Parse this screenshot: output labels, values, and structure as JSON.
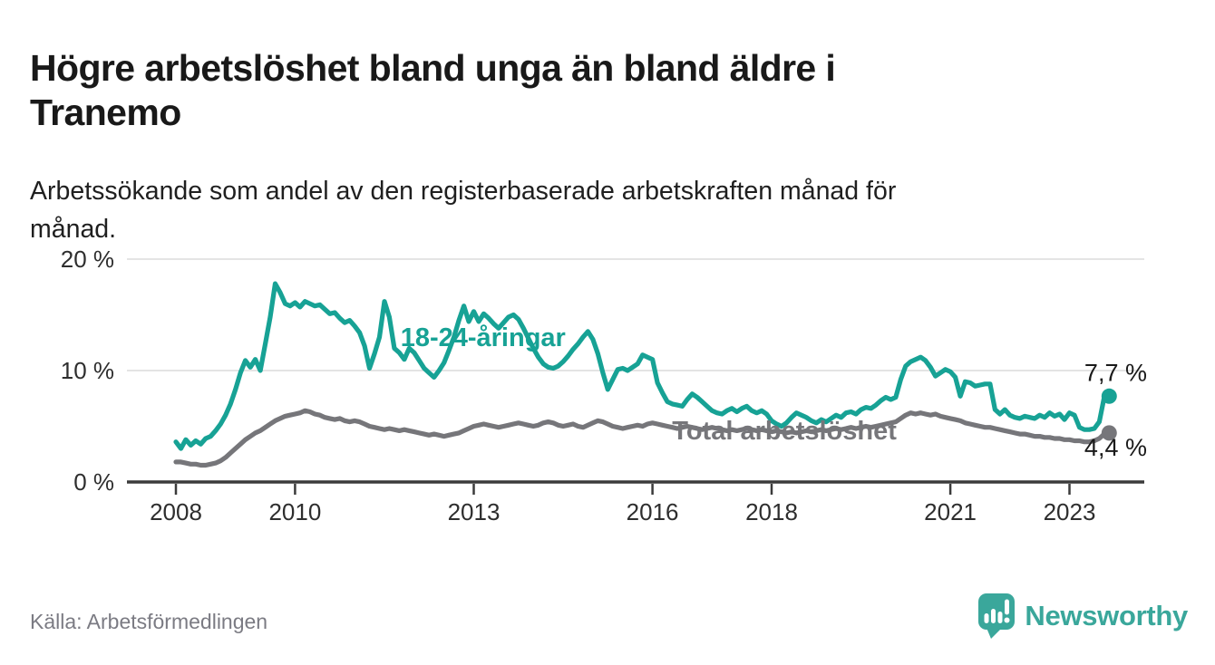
{
  "page": {
    "title_lines": [
      "Högre arbetslöshet bland unga än bland äldre i",
      "Tranemo"
    ],
    "subtitle_lines": [
      "Arbetssökande som andel av den registerbaserade arbetskraften månad för",
      "månad."
    ],
    "source": "Källa: Arbetsförmedlingen",
    "brand": {
      "name": "Newsworthy",
      "color": "#3aa79b",
      "icon": "speech-bubble-bar-chart-icon"
    }
  },
  "chart_data": {
    "type": "line",
    "title": "Högre arbetslöshet bland unga än bland äldre i Tranemo",
    "subtitle": "Arbetssökande som andel av den registerbaserade arbetskraften månad för månad.",
    "x_start_year": 2008,
    "points_per_year": 12,
    "x_range": [
      2008.0,
      2023.75
    ],
    "ylim": [
      0,
      21
    ],
    "grid": "horizontal-only",
    "legend_position": "inline-labels",
    "x_ticks": [
      2008,
      2010,
      2013,
      2016,
      2018,
      2021,
      2023
    ],
    "y_ticks": [
      {
        "value": 20,
        "label": "20 %"
      },
      {
        "value": 10,
        "label": "10 %"
      },
      {
        "value": 0,
        "label": "0 %"
      }
    ],
    "style": {
      "grid_color": "#dbdbdb",
      "axis_color": "#3b3b3b",
      "tick_label_color": "#2e2e2e",
      "value_label_color": "#1a1a1a"
    },
    "series": [
      {
        "key": "young",
        "name": "18-24-åringar",
        "color": "#17a295",
        "inline_label": {
          "text": "18-24-åringar",
          "x_year": 2011.77,
          "y_pct": 12.2
        },
        "end_label": {
          "text": "7,7 %",
          "x_year": 2023.25,
          "y_pct": 9.05
        },
        "values": [
          3.6,
          3.0,
          3.8,
          3.3,
          3.7,
          3.4,
          3.9,
          4.1,
          4.6,
          5.2,
          6.0,
          7.0,
          8.3,
          9.8,
          10.9,
          10.3,
          11.0,
          10.0,
          12.4,
          14.8,
          17.8,
          17.0,
          16.0,
          15.8,
          16.1,
          15.7,
          16.2,
          16.0,
          15.8,
          15.9,
          15.5,
          15.1,
          15.2,
          14.7,
          14.3,
          14.5,
          14.0,
          13.4,
          12.2,
          10.2,
          11.5,
          13.0,
          16.2,
          14.8,
          12.0,
          11.6,
          11.0,
          12.0,
          11.6,
          10.9,
          10.2,
          9.8,
          9.4,
          10.0,
          10.7,
          11.8,
          13.0,
          14.5,
          15.8,
          14.4,
          15.3,
          14.4,
          15.1,
          14.7,
          14.2,
          13.8,
          14.3,
          14.8,
          15.0,
          14.6,
          13.8,
          12.9,
          12.0,
          11.2,
          10.6,
          10.3,
          10.2,
          10.4,
          10.8,
          11.3,
          11.9,
          12.4,
          13.0,
          13.5,
          12.8,
          11.5,
          9.8,
          8.3,
          9.2,
          10.1,
          10.2,
          10.0,
          10.3,
          10.6,
          11.4,
          11.2,
          11.0,
          8.9,
          8.0,
          7.2,
          7.0,
          6.9,
          6.8,
          7.4,
          7.9,
          7.6,
          7.2,
          6.8,
          6.4,
          6.2,
          6.1,
          6.4,
          6.6,
          6.3,
          6.6,
          6.8,
          6.4,
          6.2,
          6.4,
          6.1,
          5.5,
          5.2,
          5.0,
          5.3,
          5.8,
          6.2,
          6.0,
          5.8,
          5.5,
          5.3,
          5.6,
          5.4,
          5.7,
          6.0,
          5.8,
          6.2,
          6.3,
          6.1,
          6.5,
          6.7,
          6.6,
          6.9,
          7.3,
          7.6,
          7.4,
          7.6,
          9.2,
          10.4,
          10.8,
          11.0,
          11.2,
          10.9,
          10.3,
          9.5,
          9.8,
          10.1,
          9.9,
          9.4,
          7.7,
          9.0,
          8.9,
          8.6,
          8.7,
          8.8,
          8.8,
          6.5,
          6.1,
          6.5,
          6.0,
          5.8,
          5.7,
          5.9,
          5.8,
          5.7,
          6.0,
          5.8,
          6.2,
          5.9,
          6.1,
          5.6,
          6.2,
          6.0,
          4.9,
          4.7,
          4.7,
          4.8,
          5.4,
          7.6,
          7.7
        ]
      },
      {
        "key": "total",
        "name": "Total arbetslöshet",
        "color": "#76767a",
        "inline_label": {
          "text": "Total arbetslöshet",
          "x_year": 2016.33,
          "y_pct": 3.82
        },
        "end_label": {
          "text": "4,4 %",
          "x_year": 2023.25,
          "y_pct": 2.35
        },
        "values": [
          1.8,
          1.8,
          1.7,
          1.6,
          1.6,
          1.5,
          1.5,
          1.6,
          1.7,
          1.9,
          2.2,
          2.6,
          3.0,
          3.4,
          3.8,
          4.1,
          4.4,
          4.6,
          4.9,
          5.2,
          5.5,
          5.7,
          5.9,
          6.0,
          6.1,
          6.2,
          6.4,
          6.3,
          6.1,
          6.0,
          5.8,
          5.7,
          5.6,
          5.7,
          5.5,
          5.4,
          5.5,
          5.4,
          5.2,
          5.0,
          4.9,
          4.8,
          4.7,
          4.8,
          4.7,
          4.6,
          4.7,
          4.6,
          4.5,
          4.4,
          4.3,
          4.2,
          4.3,
          4.2,
          4.1,
          4.2,
          4.3,
          4.4,
          4.6,
          4.8,
          5.0,
          5.1,
          5.2,
          5.1,
          5.0,
          4.9,
          5.0,
          5.1,
          5.2,
          5.3,
          5.2,
          5.1,
          5.0,
          5.1,
          5.3,
          5.4,
          5.3,
          5.1,
          5.0,
          5.1,
          5.2,
          5.0,
          4.9,
          5.1,
          5.3,
          5.5,
          5.4,
          5.2,
          5.0,
          4.9,
          4.8,
          4.9,
          5.0,
          5.1,
          5.0,
          5.2,
          5.3,
          5.2,
          5.1,
          5.0,
          4.9,
          4.8,
          4.9,
          5.0,
          4.9,
          4.8,
          4.7,
          4.8,
          4.9,
          4.8,
          4.7,
          4.6,
          4.7,
          4.6,
          4.7,
          4.8,
          4.7,
          4.6,
          4.7,
          4.6,
          4.5,
          4.6,
          4.5,
          4.4,
          4.5,
          4.4,
          4.5,
          4.6,
          4.5,
          4.6,
          4.7,
          4.6,
          4.7,
          4.8,
          4.7,
          4.8,
          4.9,
          4.8,
          4.9,
          5.0,
          4.9,
          5.0,
          5.1,
          5.2,
          5.3,
          5.4,
          5.7,
          6.0,
          6.2,
          6.1,
          6.2,
          6.1,
          6.0,
          6.1,
          5.9,
          5.8,
          5.7,
          5.6,
          5.5,
          5.3,
          5.2,
          5.1,
          5.0,
          4.9,
          4.9,
          4.8,
          4.7,
          4.6,
          4.5,
          4.4,
          4.3,
          4.3,
          4.2,
          4.1,
          4.1,
          4.0,
          4.0,
          3.9,
          3.9,
          3.8,
          3.8,
          3.7,
          3.7,
          3.6,
          3.6,
          3.7,
          3.9,
          4.3,
          4.4
        ]
      }
    ]
  }
}
